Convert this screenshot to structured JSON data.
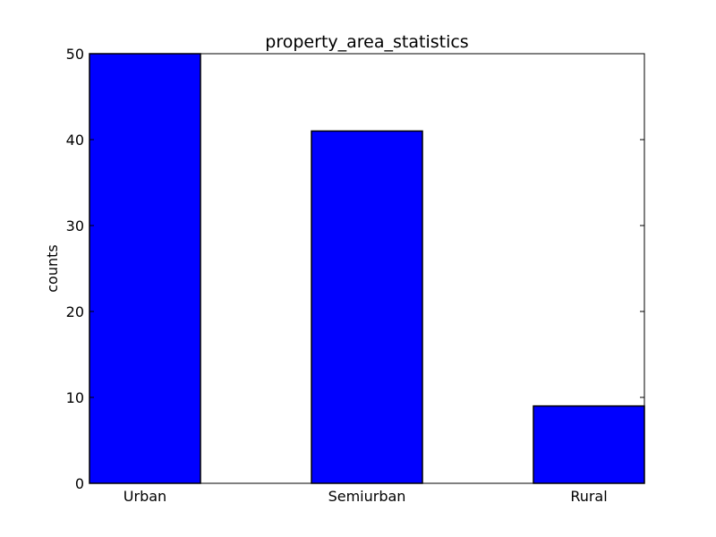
{
  "chart_data": {
    "type": "bar",
    "title": "property_area_statistics",
    "xlabel": "",
    "ylabel": "counts",
    "categories": [
      "Urban",
      "Semiurban",
      "Rural"
    ],
    "values": [
      50,
      41,
      9
    ],
    "ylim": [
      0,
      50
    ],
    "yticks": [
      0,
      10,
      20,
      30,
      40,
      50
    ],
    "grid": false,
    "legend": "none",
    "bar_color": "#0000ff",
    "edge_color": "#000000"
  }
}
